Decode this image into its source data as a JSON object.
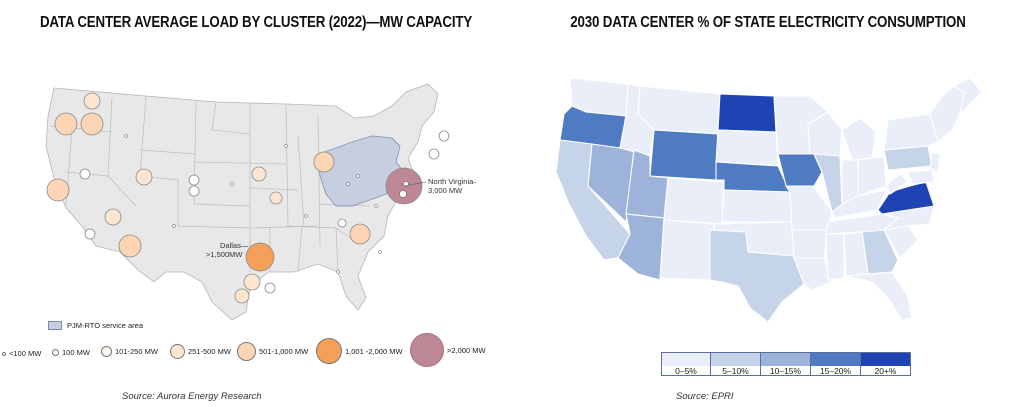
{
  "left": {
    "title": "DATA CENTER AVERAGE LOAD BY CLUSTER (2022)—MW CAPACITY",
    "source": "Source: Aurora Energy Research",
    "pjm_legend": "PJM-RTO service area",
    "callouts": {
      "north_virginia_line1": "North Virginia—",
      "north_virginia_line2": "3,000 MW",
      "dallas_line1": "Dallas—",
      "dallas_line2": ">1,500MW"
    },
    "legend": [
      {
        "label": "<100 MW",
        "color": "#ffffff"
      },
      {
        "label": "100 MW",
        "color": "#ffffff"
      },
      {
        "label": "101-250 MW",
        "color": "#fff7ee"
      },
      {
        "label": "251-500 MW",
        "color": "#fde6d0"
      },
      {
        "label": "501-1,000 MW",
        "color": "#fbd5b4"
      },
      {
        "label": "1,001 -2,000 MW",
        "color": "#f5a05a"
      },
      {
        "label": ">2,000 MW",
        "color": "#bd8796"
      }
    ],
    "colors": {
      "state_fill": "#e8e8e8",
      "state_border": "#b5b5b5",
      "pjm": "#c6cfdf"
    }
  },
  "right": {
    "title": "2030 DATA CENTER % OF STATE ELECTRICITY CONSUMPTION",
    "source": "Source: EPRI",
    "scale": [
      {
        "label": "0–5%",
        "color": "#e9eef8"
      },
      {
        "label": "5–10%",
        "color": "#c6d4ea"
      },
      {
        "label": "10–15%",
        "color": "#9db3da"
      },
      {
        "label": "15–20%",
        "color": "#4f7bc2"
      },
      {
        "label": "20+%",
        "color": "#1e43b3"
      }
    ]
  }
}
